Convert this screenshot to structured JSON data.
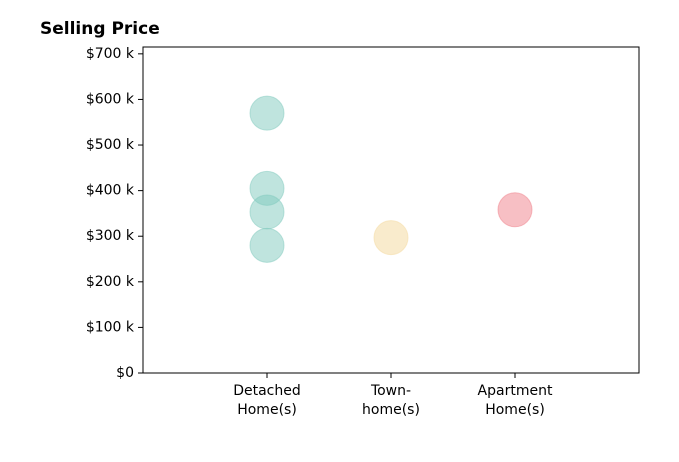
{
  "chart_data": {
    "type": "strip",
    "title": "Selling Price",
    "categories": [
      "Detached\nHome(s)",
      "Town-\nhome(s)",
      "Apartment\nHome(s)"
    ],
    "values": [
      [
        570000,
        405000,
        353000,
        280000
      ],
      [
        297000
      ],
      [
        358000
      ]
    ],
    "colors": [
      "rgba(127,201,190,0.5)",
      "rgba(245,222,170,0.6)",
      "rgba(240,128,138,0.5)"
    ],
    "xlim": [
      -1,
      3
    ],
    "ylim": [
      0,
      715000
    ],
    "yticks": [
      {
        "value": 0,
        "label": "$0"
      },
      {
        "value": 100000,
        "label": "$100 k"
      },
      {
        "value": 200000,
        "label": "$200 k"
      },
      {
        "value": 300000,
        "label": "$300 k"
      },
      {
        "value": 400000,
        "label": "$400 k"
      },
      {
        "value": 500000,
        "label": "$500 k"
      },
      {
        "value": 600000,
        "label": "$600 k"
      },
      {
        "value": 700000,
        "label": "$700 k"
      }
    ]
  }
}
